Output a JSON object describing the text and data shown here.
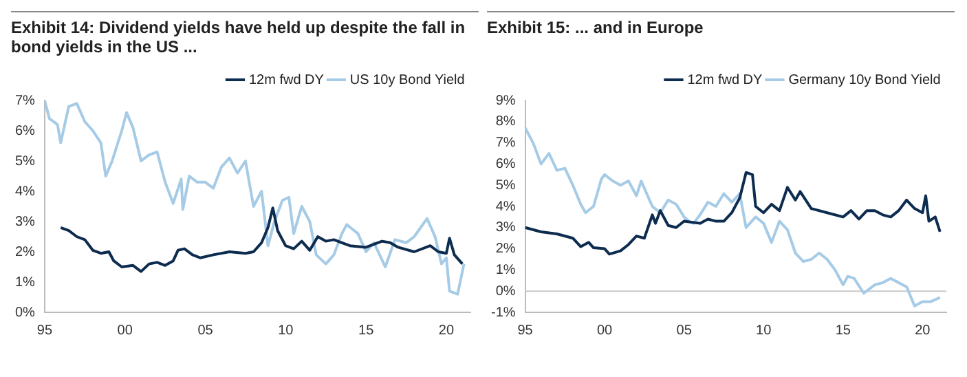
{
  "chart_data": [
    {
      "type": "line",
      "title": "Exhibit 14: Dividend yields have held up despite the fall in bond yields in the US ...",
      "legend": "top right",
      "xlim": [
        1995,
        2021.5
      ],
      "xticks": [
        {
          "value": 1995,
          "label": "95"
        },
        {
          "value": 2000,
          "label": "00"
        },
        {
          "value": 2005,
          "label": "05"
        },
        {
          "value": 2010,
          "label": "10"
        },
        {
          "value": 2015,
          "label": "15"
        },
        {
          "value": 2020,
          "label": "20"
        }
      ],
      "ylim": [
        0,
        7
      ],
      "yticks": [
        {
          "value": 0,
          "label": "0%"
        },
        {
          "value": 1,
          "label": "1%"
        },
        {
          "value": 2,
          "label": "2%"
        },
        {
          "value": 3,
          "label": "3%"
        },
        {
          "value": 4,
          "label": "4%"
        },
        {
          "value": 5,
          "label": "5%"
        },
        {
          "value": 6,
          "label": "6%"
        },
        {
          "value": 7,
          "label": "7%"
        }
      ],
      "series": [
        {
          "name": "12m fwd DY",
          "color": "#0d2c4f",
          "x": [
            1996,
            1996.5,
            1997,
            1997.5,
            1998,
            1998.5,
            1999,
            1999.3,
            1999.8,
            2000.5,
            2001,
            2001.5,
            2002,
            2002.5,
            2003,
            2003.3,
            2003.7,
            2004.2,
            2004.7,
            2005.5,
            2006.5,
            2007.5,
            2008,
            2008.5,
            2008.9,
            2009.2,
            2009.5,
            2010,
            2010.5,
            2011,
            2011.5,
            2012,
            2012.5,
            2013,
            2013.5,
            2014,
            2015,
            2016,
            2016.5,
            2017,
            2018,
            2019,
            2019.5,
            2020,
            2020.2,
            2020.5,
            2021
          ],
          "values": [
            2.8,
            2.7,
            2.5,
            2.4,
            2.05,
            1.95,
            2.0,
            1.7,
            1.5,
            1.55,
            1.35,
            1.6,
            1.65,
            1.55,
            1.7,
            2.05,
            2.1,
            1.9,
            1.8,
            1.9,
            2.0,
            1.95,
            2.0,
            2.3,
            2.8,
            3.45,
            2.7,
            2.2,
            2.1,
            2.35,
            2.05,
            2.5,
            2.35,
            2.4,
            2.3,
            2.2,
            2.15,
            2.35,
            2.3,
            2.15,
            2.0,
            2.2,
            2.0,
            1.95,
            2.45,
            1.9,
            1.6
          ]
        },
        {
          "name": "US 10y Bond Yield",
          "color": "#a6cbe6",
          "x": [
            1995,
            1995.3,
            1995.8,
            1996,
            1996.5,
            1997,
            1997.5,
            1998,
            1998.5,
            1998.8,
            1999.2,
            1999.8,
            2000.1,
            2000.5,
            2001,
            2001.5,
            2002,
            2002.5,
            2003,
            2003.5,
            2003.6,
            2004,
            2004.5,
            2005,
            2005.5,
            2006,
            2006.5,
            2007,
            2007.5,
            2008,
            2008.5,
            2008.9,
            2009.3,
            2009.8,
            2010.2,
            2010.5,
            2011,
            2011.5,
            2011.9,
            2012.5,
            2013,
            2013.5,
            2013.8,
            2014.5,
            2015,
            2015.5,
            2016.2,
            2016.8,
            2017.5,
            2018,
            2018.8,
            2019.3,
            2019.7,
            2020,
            2020.2,
            2020.7,
            2021.1
          ],
          "values": [
            7.0,
            6.4,
            6.2,
            5.6,
            6.8,
            6.9,
            6.3,
            6.0,
            5.6,
            4.5,
            5.0,
            6.0,
            6.6,
            6.1,
            5.0,
            5.2,
            5.3,
            4.3,
            3.6,
            4.4,
            3.4,
            4.5,
            4.3,
            4.3,
            4.1,
            4.8,
            5.1,
            4.6,
            5.0,
            3.5,
            4.0,
            2.2,
            3.0,
            3.7,
            3.8,
            2.6,
            3.5,
            3.0,
            1.9,
            1.6,
            1.9,
            2.6,
            2.9,
            2.6,
            2.0,
            2.3,
            1.5,
            2.4,
            2.3,
            2.5,
            3.1,
            2.5,
            1.6,
            1.8,
            0.7,
            0.6,
            1.6
          ]
        }
      ]
    },
    {
      "type": "line",
      "title": "Exhibit 15: ... and in Europe",
      "legend": "top right",
      "xlim": [
        1995,
        2021.5
      ],
      "xticks": [
        {
          "value": 1995,
          "label": "95"
        },
        {
          "value": 2000,
          "label": "00"
        },
        {
          "value": 2005,
          "label": "05"
        },
        {
          "value": 2010,
          "label": "10"
        },
        {
          "value": 2015,
          "label": "15"
        },
        {
          "value": 2020,
          "label": "20"
        }
      ],
      "ylim": [
        -1,
        9
      ],
      "yticks": [
        {
          "value": -1,
          "label": "-1%"
        },
        {
          "value": 0,
          "label": "0%"
        },
        {
          "value": 1,
          "label": "1%"
        },
        {
          "value": 2,
          "label": "2%"
        },
        {
          "value": 3,
          "label": "3%"
        },
        {
          "value": 4,
          "label": "4%"
        },
        {
          "value": 5,
          "label": "5%"
        },
        {
          "value": 6,
          "label": "6%"
        },
        {
          "value": 7,
          "label": "7%"
        },
        {
          "value": 8,
          "label": "8%"
        },
        {
          "value": 9,
          "label": "9%"
        }
      ],
      "ref_lines": [
        {
          "axis": "y",
          "value": 0,
          "color": "#c8c8c8"
        }
      ],
      "series": [
        {
          "name": "12m fwd DY",
          "color": "#0d2c4f",
          "x": [
            1995,
            1996,
            1997,
            1998,
            1998.5,
            1999,
            1999.3,
            2000,
            2000.3,
            2001,
            2001.5,
            2002,
            2002.5,
            2003,
            2003.2,
            2003.5,
            2004,
            2004.5,
            2005,
            2006,
            2006.5,
            2007,
            2007.5,
            2008,
            2008.5,
            2008.9,
            2009.3,
            2009.5,
            2010,
            2010.5,
            2011,
            2011.5,
            2012,
            2012.3,
            2013,
            2014,
            2015,
            2015.5,
            2016,
            2016.5,
            2017,
            2017.5,
            2018,
            2018.5,
            2019,
            2019.5,
            2020,
            2020.2,
            2020.4,
            2020.8,
            2021.1
          ],
          "values": [
            3.0,
            2.8,
            2.7,
            2.5,
            2.1,
            2.3,
            2.05,
            2.0,
            1.75,
            1.9,
            2.2,
            2.6,
            2.5,
            3.6,
            3.2,
            3.8,
            3.1,
            3.0,
            3.3,
            3.2,
            3.4,
            3.3,
            3.3,
            3.7,
            4.4,
            5.6,
            5.5,
            4.0,
            3.7,
            4.1,
            3.8,
            4.9,
            4.3,
            4.7,
            3.9,
            3.7,
            3.5,
            3.8,
            3.4,
            3.8,
            3.8,
            3.6,
            3.5,
            3.8,
            4.3,
            3.9,
            3.7,
            4.5,
            3.3,
            3.5,
            2.8
          ]
        },
        {
          "name": "Germany 10y Bond Yield",
          "color": "#a6cbe6",
          "x": [
            1995,
            1995.5,
            1996,
            1996.5,
            1997,
            1997.5,
            1998,
            1998.5,
            1998.8,
            1999.3,
            1999.8,
            2000,
            2000.5,
            2001,
            2001.5,
            2002,
            2002.3,
            2003,
            2003.5,
            2004,
            2004.5,
            2005,
            2005.3,
            2005.6,
            2006,
            2006.5,
            2007,
            2007.5,
            2008,
            2008.5,
            2008.9,
            2009.5,
            2010,
            2010.5,
            2011,
            2011.5,
            2012,
            2012.5,
            2013,
            2013.5,
            2014,
            2014.5,
            2015,
            2015.3,
            2015.7,
            2016.3,
            2017,
            2017.5,
            2018,
            2018.5,
            2019,
            2019.5,
            2020,
            2020.5,
            2021.1
          ],
          "values": [
            7.7,
            7.0,
            6.0,
            6.5,
            5.7,
            5.8,
            5.0,
            4.1,
            3.7,
            4.0,
            5.3,
            5.5,
            5.2,
            5.0,
            5.2,
            4.5,
            5.2,
            4.0,
            3.7,
            4.3,
            4.1,
            3.5,
            3.3,
            3.2,
            3.6,
            4.2,
            4.0,
            4.6,
            4.2,
            4.6,
            3.0,
            3.5,
            3.2,
            2.3,
            3.3,
            2.9,
            1.8,
            1.4,
            1.5,
            1.8,
            1.5,
            1.0,
            0.3,
            0.7,
            0.6,
            -0.1,
            0.3,
            0.4,
            0.6,
            0.4,
            0.2,
            -0.7,
            -0.5,
            -0.5,
            -0.3
          ]
        }
      ]
    }
  ]
}
